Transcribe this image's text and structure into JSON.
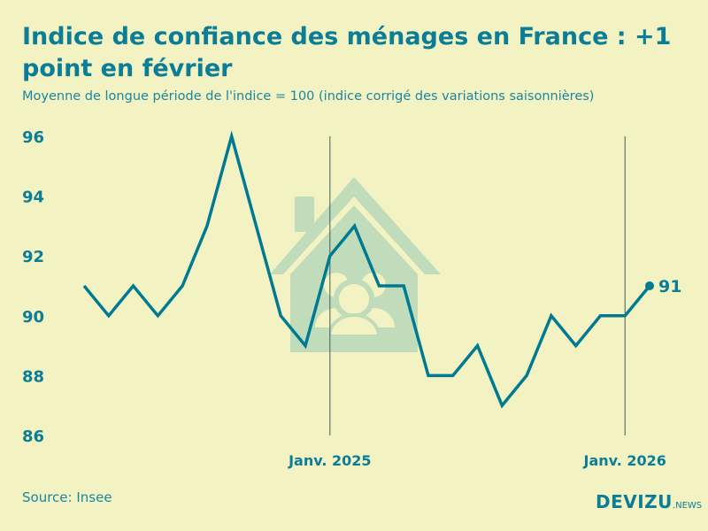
{
  "title": "Indice de confiance des ménages en France : +1 point en février",
  "subtitle": "Moyenne de longue période de l'indice = 100 (indice corrigé des variations saisonnières)",
  "source": "Source: Insee",
  "logo": {
    "main": "DEVIZU",
    "suffix": ".NEWS"
  },
  "colors": {
    "background": "#f2f2c2",
    "line": "#007a92",
    "text": "#0b7d96",
    "watermark": "#c0dcbb"
  },
  "watermark_icon": "house-family-icon",
  "chart_data": {
    "type": "line",
    "title": "Indice de confiance des ménages en France : +1 point en février",
    "x": [
      "2024-03",
      "2024-04",
      "2024-05",
      "2024-06",
      "2024-07",
      "2024-08",
      "2024-09",
      "2024-10",
      "2024-11",
      "2024-12",
      "2025-01",
      "2025-02",
      "2025-03",
      "2025-04",
      "2025-05",
      "2025-06",
      "2025-07",
      "2025-08",
      "2025-09",
      "2025-10",
      "2025-11",
      "2025-12",
      "2026-01",
      "2026-02"
    ],
    "values": [
      91,
      90,
      91,
      90,
      91,
      93,
      96,
      93,
      90,
      89,
      92,
      93,
      91,
      91,
      88,
      88,
      89,
      87,
      88,
      90,
      89,
      90,
      90,
      91
    ],
    "ylim": [
      86,
      96
    ],
    "yticks": [
      96,
      94,
      92,
      90,
      88,
      86
    ],
    "xtick_labels": [
      {
        "x": "2025-01",
        "label": "Janv. 2025"
      },
      {
        "x": "2026-01",
        "label": "Janv. 2026"
      }
    ],
    "last_value_label": "91",
    "grid": false
  }
}
